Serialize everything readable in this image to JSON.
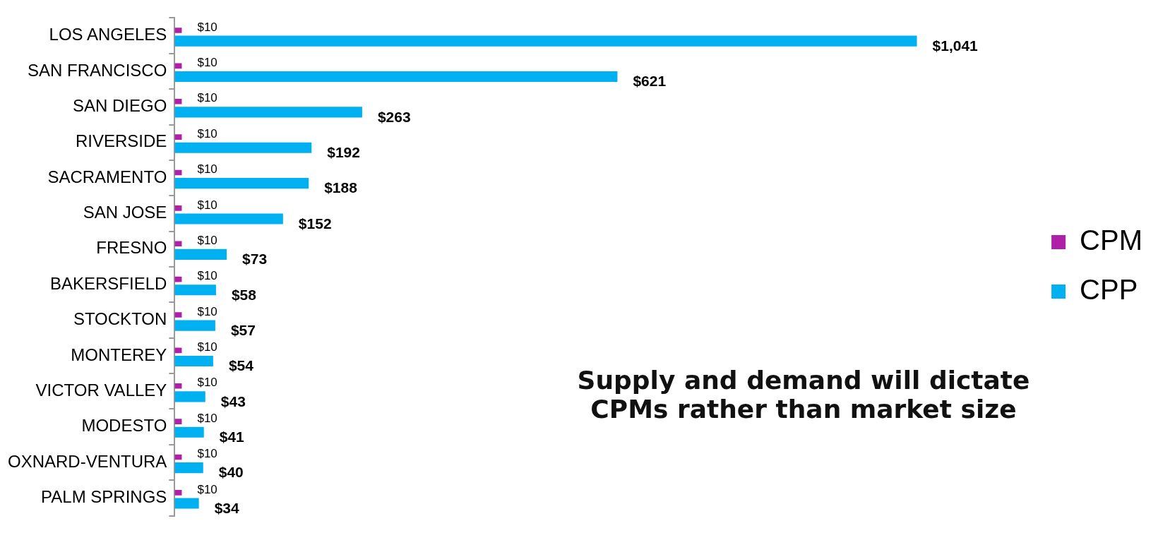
{
  "chart_data": {
    "type": "bar",
    "orientation": "horizontal",
    "categories": [
      "LOS ANGELES",
      "SAN FRANCISCO",
      "SAN DIEGO",
      "RIVERSIDE",
      "SACRAMENTO",
      "SAN JOSE",
      "FRESNO",
      "BAKERSFIELD",
      "STOCKTON",
      "MONTEREY",
      "VICTOR VALLEY",
      "MODESTO",
      "OXNARD-VENTURA",
      "PALM SPRINGS"
    ],
    "series": [
      {
        "name": "CPM",
        "color": "#b01fa8",
        "values": [
          10,
          10,
          10,
          10,
          10,
          10,
          10,
          10,
          10,
          10,
          10,
          10,
          10,
          10
        ],
        "value_labels": [
          "$10",
          "$10",
          "$10",
          "$10",
          "$10",
          "$10",
          "$10",
          "$10",
          "$10",
          "$10",
          "$10",
          "$10",
          "$10",
          "$10"
        ]
      },
      {
        "name": "CPP",
        "color": "#00b0f0",
        "values": [
          1041,
          621,
          263,
          192,
          188,
          152,
          73,
          58,
          57,
          54,
          43,
          41,
          40,
          34
        ],
        "value_labels": [
          "$1,041",
          "$621",
          "$263",
          "$192",
          "$188",
          "$152",
          "$73",
          "$58",
          "$57",
          "$54",
          "$43",
          "$41",
          "$40",
          "$34"
        ]
      }
    ],
    "legend": "right",
    "grid": false,
    "annotations": [
      "Supply and demand will dictate CPMs rather than market size"
    ]
  }
}
